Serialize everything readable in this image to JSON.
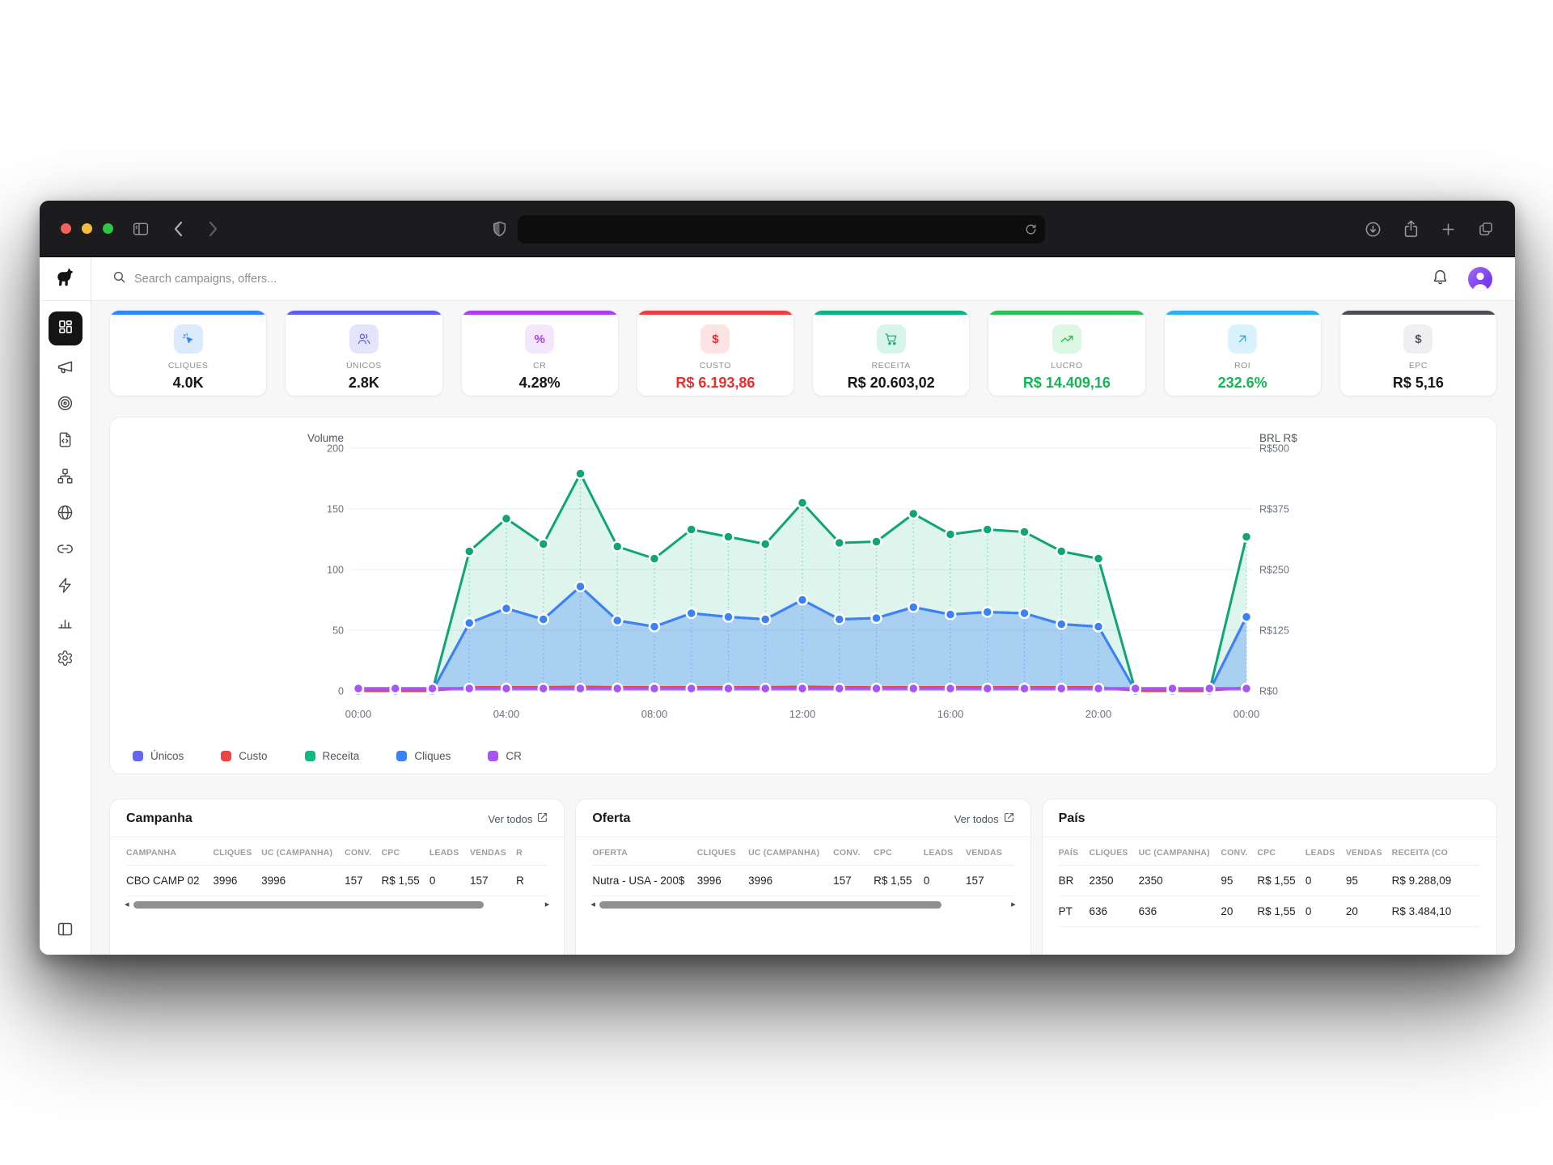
{
  "browser": {
    "url_value": "",
    "icons": [
      "sidebar-toggle-icon",
      "back-icon",
      "forward-icon",
      "shield-icon",
      "reload-icon",
      "download-icon",
      "share-icon",
      "new-tab-icon",
      "tab-overview-icon"
    ]
  },
  "app": {
    "search_placeholder": "Search campaigns, offers...",
    "logo_icon": "dog-logo",
    "header_icons": [
      "bell-icon",
      "avatar"
    ]
  },
  "sidebar": {
    "active_index": 0,
    "items": [
      {
        "icon": "dashboard"
      },
      {
        "icon": "megaphone"
      },
      {
        "icon": "target"
      },
      {
        "icon": "file-code"
      },
      {
        "icon": "network"
      },
      {
        "icon": "globe"
      },
      {
        "icon": "link"
      },
      {
        "icon": "zap"
      },
      {
        "icon": "bar-chart"
      },
      {
        "icon": "settings"
      }
    ],
    "bottom_icon": "panel-left"
  },
  "kpis": [
    {
      "id": "cliques",
      "label": "CLIQUES",
      "value": "4.0K",
      "icon": "click-icon",
      "bar": "#2e86f7",
      "tint": "#dbeafe",
      "icon_color": "#2e86f7",
      "value_color": "#17171b"
    },
    {
      "id": "unicos",
      "label": "ÚNICOS",
      "value": "2.8K",
      "icon": "users-icon",
      "bar": "#5b5cf2",
      "tint": "#e4e5fd",
      "icon_color": "#5b5cf2",
      "value_color": "#17171b"
    },
    {
      "id": "cr",
      "label": "CR",
      "value": "4.28%",
      "icon": "percent-icon",
      "bar": "#ab3df2",
      "tint": "#f4e6fd",
      "icon_color": "#ab3df2",
      "value_color": "#17171b"
    },
    {
      "id": "custo",
      "label": "CUSTO",
      "value": "R$ 6.193,86",
      "icon": "dollar-icon",
      "bar": "#f03d3d",
      "tint": "#fde3e3",
      "icon_color": "#ee2d2d",
      "value_color": "#ee2d2d"
    },
    {
      "id": "receita",
      "label": "RECEITA",
      "value": "R$ 20.603,02",
      "icon": "cart-icon",
      "bar": "#0db183",
      "tint": "#d8f5ea",
      "icon_color": "#0db183",
      "value_color": "#17171b"
    },
    {
      "id": "lucro",
      "label": "LUCRO",
      "value": "R$ 14.409,16",
      "icon": "trend-icon",
      "bar": "#2dc054",
      "tint": "#dcf7e4",
      "icon_color": "#2dc054",
      "value_color": "#13b655"
    },
    {
      "id": "roi",
      "label": "ROI",
      "value": "232.6%",
      "icon": "arrow-up-right-icon",
      "bar": "#29b2ef",
      "tint": "#d9f2fd",
      "icon_color": "#29a8ef",
      "value_color": "#13b655"
    },
    {
      "id": "epc",
      "label": "EPC",
      "value": "R$ 5,16",
      "icon": "dollar-icon",
      "bar": "#4c4c55",
      "tint": "#efeff1",
      "icon_color": "#55555c",
      "value_color": "#17171b"
    }
  ],
  "chart_data": {
    "type": "area",
    "x_hours": [
      0,
      1,
      2,
      3,
      4,
      5,
      6,
      7,
      8,
      9,
      10,
      11,
      12,
      13,
      14,
      15,
      16,
      17,
      18,
      19,
      20,
      21,
      22,
      23,
      24
    ],
    "x_tick_hours": [
      0,
      4,
      8,
      12,
      16,
      20,
      24
    ],
    "x_tick_labels": [
      "00:00",
      "04:00",
      "08:00",
      "12:00",
      "16:00",
      "20:00",
      "00:00"
    ],
    "y_left": {
      "title": "Volume",
      "ticks": [
        200,
        150,
        100,
        50,
        0
      ],
      "range": [
        0,
        200
      ]
    },
    "y_right": {
      "title": "BRL R$",
      "ticks": [
        "R$500",
        "R$375",
        "R$250",
        "R$125",
        "R$0"
      ],
      "range": [
        0,
        500
      ]
    },
    "grid": true,
    "legend_position": "bottom-left",
    "series": [
      {
        "name": "Receita",
        "axis": "left",
        "color": "#10a574",
        "fill": "rgba(16,185,129,0.14)",
        "dots": true,
        "values": [
          0,
          0,
          0,
          115,
          142,
          121,
          179,
          119,
          109,
          133,
          127,
          121,
          155,
          122,
          123,
          146,
          129,
          133,
          131,
          115,
          109,
          0,
          0,
          0,
          127
        ]
      },
      {
        "name": "Únicos",
        "axis": "left",
        "color": "#6366f1",
        "fill": null,
        "dots": false,
        "values": [
          0,
          0,
          0,
          56,
          68,
          59,
          86,
          58,
          53,
          64,
          61,
          59,
          75,
          59,
          60,
          69,
          63,
          65,
          64,
          55,
          53,
          0,
          0,
          0,
          61
        ]
      },
      {
        "name": "Cliques",
        "axis": "left",
        "color": "#3b82f6",
        "fill": "rgba(59,130,246,0.32)",
        "dots": true,
        "values": [
          0,
          0,
          0,
          56,
          68,
          59,
          86,
          58,
          53,
          64,
          61,
          59,
          75,
          59,
          60,
          69,
          63,
          65,
          64,
          55,
          53,
          0,
          0,
          0,
          61
        ]
      },
      {
        "name": "Custo",
        "axis": "right",
        "color": "#ef4444",
        "fill": null,
        "dots": false,
        "values": [
          0,
          0,
          0,
          8,
          8,
          8,
          9,
          8,
          8,
          8,
          8,
          8,
          9,
          8,
          8,
          8,
          8,
          8,
          8,
          8,
          8,
          0,
          0,
          0,
          8
        ]
      },
      {
        "name": "CR",
        "axis": "left",
        "color": "#a855f7",
        "fill": null,
        "dots": true,
        "values": [
          2,
          2,
          2,
          2,
          2,
          2,
          2,
          2,
          2,
          2,
          2,
          2,
          2,
          2,
          2,
          2,
          2,
          2,
          2,
          2,
          2,
          2,
          2,
          2,
          2
        ]
      }
    ],
    "legend": [
      {
        "label": "Únicos",
        "color": "#6366f1"
      },
      {
        "label": "Custo",
        "color": "#ef4444"
      },
      {
        "label": "Receita",
        "color": "#10b981"
      },
      {
        "label": "Cliques",
        "color": "#3b82f6"
      },
      {
        "label": "CR",
        "color": "#a855f7"
      }
    ]
  },
  "tables": [
    {
      "id": "campanha",
      "title": "Campanha",
      "link": "Ver todos",
      "scrollbar": true,
      "thumb_pct": 86,
      "headers": [
        "CAMPANHA",
        "CLIQUES",
        "UC (CAMPANHA)",
        "CONV.",
        "CPC",
        "LEADS",
        "VENDAS",
        "R"
      ],
      "rows": [
        [
          "CBO CAMP 02",
          "3996",
          "3996",
          "157",
          "R$ 1,55",
          "0",
          "157",
          "R"
        ]
      ]
    },
    {
      "id": "oferta",
      "title": "Oferta",
      "link": "Ver todos",
      "scrollbar": true,
      "thumb_pct": 84,
      "headers": [
        "OFERTA",
        "CLIQUES",
        "UC (CAMPANHA)",
        "CONV.",
        "CPC",
        "LEADS",
        "VENDAS"
      ],
      "rows": [
        [
          "Nutra - USA - 200$",
          "3996",
          "3996",
          "157",
          "R$ 1,55",
          "0",
          "157"
        ]
      ]
    },
    {
      "id": "pais",
      "title": "País",
      "link": null,
      "scrollbar": false,
      "thumb_pct": 0,
      "headers": [
        "PAÍS",
        "CLIQUES",
        "UC (CAMPANHA)",
        "CONV.",
        "CPC",
        "LEADS",
        "VENDAS",
        "RECEITA (CO"
      ],
      "rows": [
        [
          "BR",
          "2350",
          "2350",
          "95",
          "R$ 1,55",
          "0",
          "95",
          "R$ 9.288,09"
        ],
        [
          "PT",
          "636",
          "636",
          "20",
          "R$ 1,55",
          "0",
          "20",
          "R$ 3.484,10"
        ]
      ]
    }
  ]
}
